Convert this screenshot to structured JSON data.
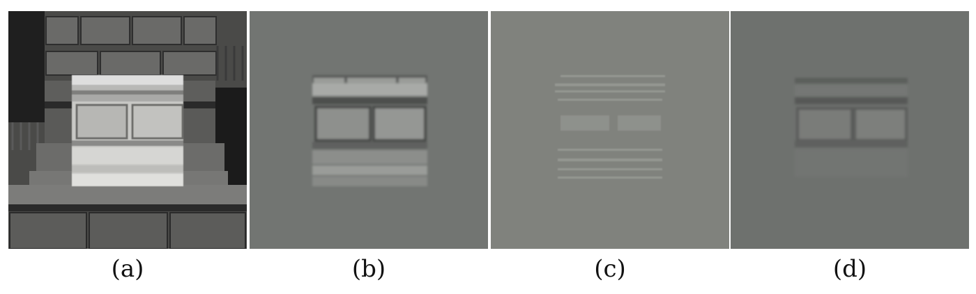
{
  "figure": {
    "panels": [
      {
        "id": "a",
        "caption": "(a)"
      },
      {
        "id": "b",
        "caption": "(b)"
      },
      {
        "id": "c",
        "caption": "(c)"
      },
      {
        "id": "d",
        "caption": "(d)"
      }
    ]
  }
}
